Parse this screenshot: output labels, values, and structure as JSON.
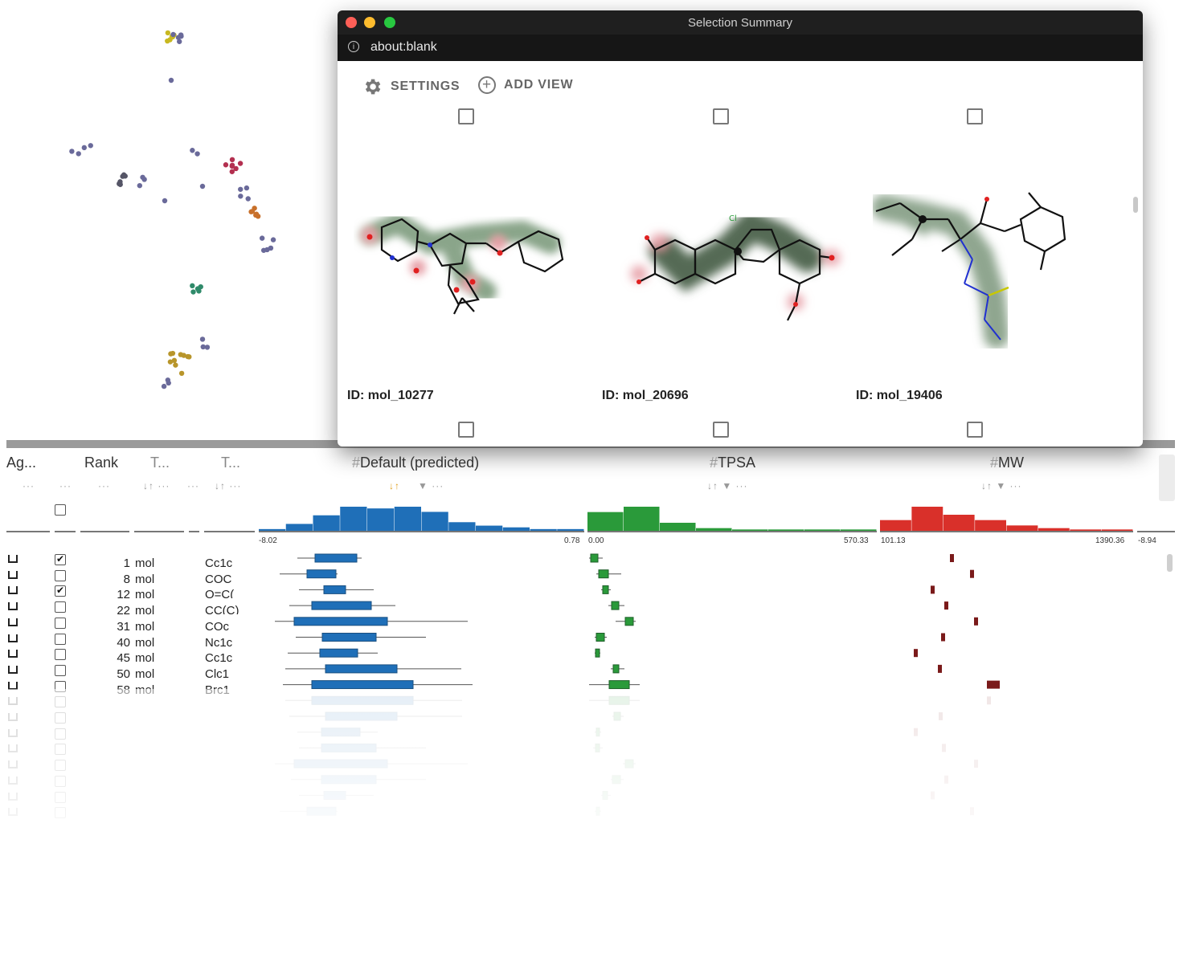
{
  "window": {
    "title": "Selection Summary",
    "url": "about:blank",
    "traffic_lights": {
      "close": "#fe5f57",
      "minimize": "#febc2e",
      "zoom": "#28c840"
    },
    "toolbar": {
      "settings_label": "SETTINGS",
      "add_view_label": "ADD VIEW"
    },
    "molecules": [
      {
        "id_label": "ID: mol_10277"
      },
      {
        "id_label": "ID: mol_20696"
      },
      {
        "id_label": "ID: mol_19406"
      }
    ]
  },
  "table": {
    "columns": [
      {
        "label": "Ag..."
      },
      {
        "label": "Rank"
      },
      {
        "label": "T..."
      },
      {
        "label": "T..."
      },
      {
        "label": "Default (predicted)",
        "hash": "#",
        "color": "#1f6fb8",
        "min_label": "-8.02",
        "max_label": "0.78",
        "histogram": [
          1,
          4,
          9,
          14,
          13,
          14,
          11,
          5,
          3,
          2,
          1,
          1
        ]
      },
      {
        "label": "TPSA",
        "hash": "#",
        "color": "#2a9a3a",
        "min_label": "0.00",
        "max_label": "570.33",
        "histogram": [
          14,
          18,
          6,
          2,
          1,
          1,
          1,
          1
        ]
      },
      {
        "label": "MW",
        "hash": "#",
        "color": "#d9302a",
        "min_label": "101.13",
        "max_label": "1390.36",
        "histogram": [
          8,
          18,
          12,
          8,
          4,
          2,
          1,
          1
        ]
      }
    ],
    "cut_label": "-8.94",
    "rows": [
      {
        "checked": true,
        "rank": "1",
        "t1": "mol",
        "t2": "Cc1c"
      },
      {
        "checked": false,
        "rank": "8",
        "t1": "mol",
        "t2": "COC"
      },
      {
        "checked": true,
        "rank": "12",
        "t1": "mol",
        "t2": "O=C("
      },
      {
        "checked": false,
        "rank": "22",
        "t1": "mol",
        "t2": "CC(C)"
      },
      {
        "checked": false,
        "rank": "31",
        "t1": "mol",
        "t2": "COc"
      },
      {
        "checked": false,
        "rank": "40",
        "t1": "mol",
        "t2": "Nc1c"
      },
      {
        "checked": false,
        "rank": "45",
        "t1": "mol",
        "t2": "Cc1c"
      },
      {
        "checked": false,
        "rank": "50",
        "t1": "mol",
        "t2": "Clc1"
      },
      {
        "checked": false,
        "rank": "58",
        "t1": "mol",
        "t2": "Brc1"
      }
    ]
  }
}
